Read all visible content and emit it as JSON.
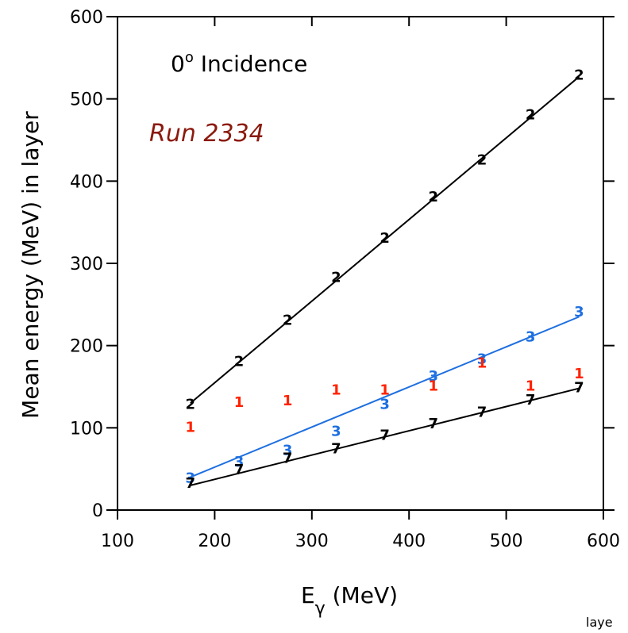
{
  "chart_data": {
    "type": "scatter",
    "title": "",
    "xlabel": "E",
    "xlabel_sub": "γ",
    "xlabel_unit": " (MeV)",
    "ylabel": "Mean energy (MeV) in layer",
    "xlim": [
      100,
      600
    ],
    "ylim": [
      0,
      600
    ],
    "xticks": [
      100,
      200,
      300,
      400,
      500,
      600
    ],
    "yticks": [
      0,
      100,
      200,
      300,
      400,
      500,
      600
    ],
    "grid": false,
    "annotations": {
      "incidence_prefix": "0",
      "incidence_sup": "o",
      "incidence_suffix": " Incidence",
      "run": "Run 2334",
      "cutoff_text": "laye"
    },
    "series": [
      {
        "marker": "2",
        "color": "#000000",
        "x": [
          175,
          225,
          275,
          325,
          375,
          425,
          475,
          525,
          575
        ],
        "y": [
          128,
          180,
          230,
          282,
          330,
          380,
          425,
          480,
          528
        ],
        "fit": {
          "x": [
            175,
            575
          ],
          "y": [
            130,
            527
          ]
        }
      },
      {
        "marker": "3",
        "color": "#1e6fe0",
        "x": [
          175,
          225,
          275,
          325,
          375,
          425,
          475,
          525,
          575
        ],
        "y": [
          38,
          58,
          72,
          95,
          128,
          162,
          183,
          210,
          240
        ],
        "fit": {
          "x": [
            175,
            575
          ],
          "y": [
            40,
            235
          ]
        }
      },
      {
        "marker": "1",
        "color": "#ff2200",
        "x": [
          175,
          225,
          275,
          325,
          375,
          425,
          475,
          525,
          575
        ],
        "y": [
          100,
          130,
          132,
          145,
          145,
          150,
          178,
          150,
          165
        ],
        "fit": null
      },
      {
        "marker": "7",
        "color": "#000000",
        "x": [
          175,
          225,
          275,
          325,
          375,
          425,
          475,
          525,
          575
        ],
        "y": [
          32,
          48,
          62,
          74,
          90,
          104,
          118,
          133,
          148
        ],
        "fit": {
          "x": [
            175,
            575
          ],
          "y": [
            30,
            148
          ]
        }
      }
    ]
  }
}
